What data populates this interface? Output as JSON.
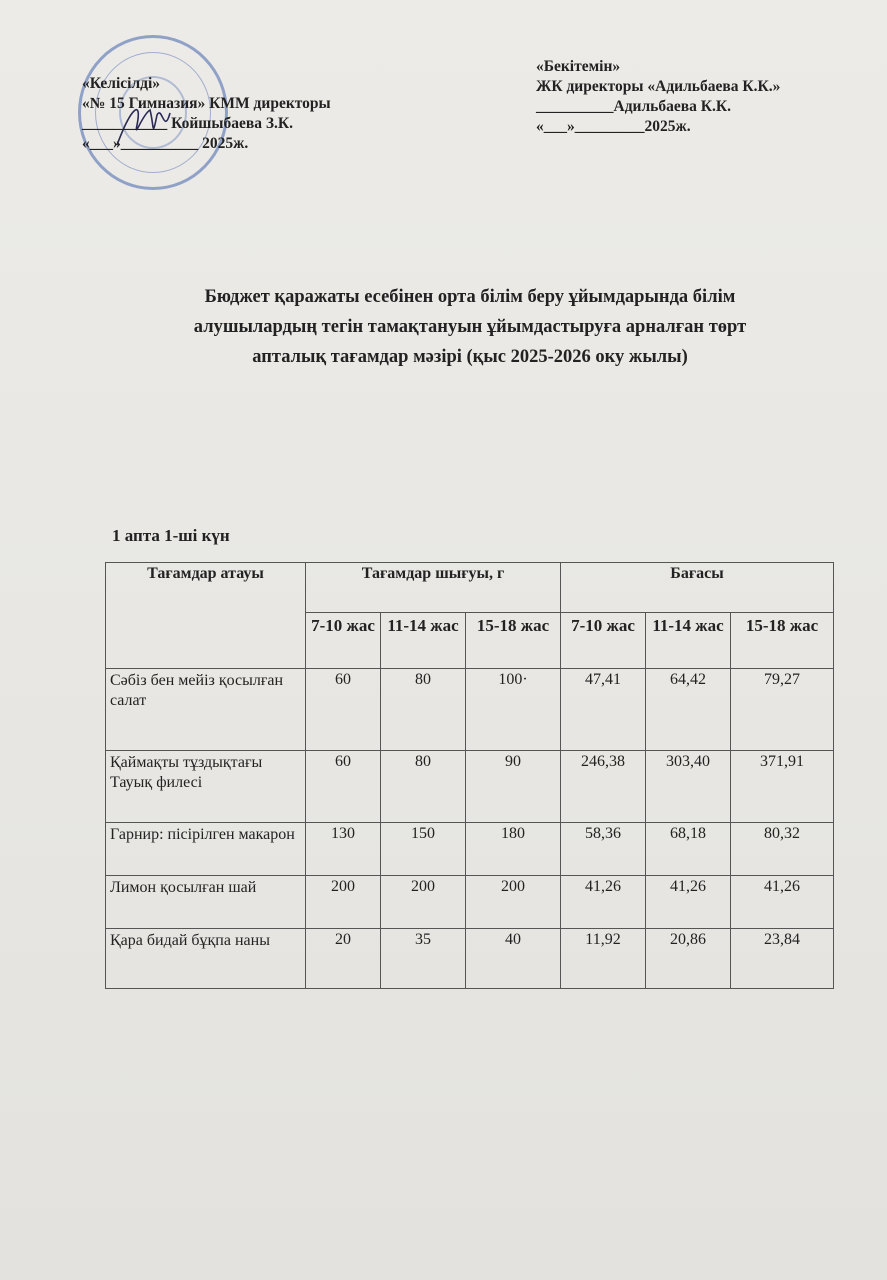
{
  "approval_left": {
    "line1": "«Келісілді»",
    "line2": "«№ 15 Гимназия» КММ директоры",
    "line3": "___________ Койшыбаева З.К.",
    "line4": "«___»__________ 2025ж."
  },
  "approval_right": {
    "line1": "«Бекітемін»",
    "line2": "ЖК директоры «Адильбаева К.К.»",
    "line3": "__________Адильбаева К.К.",
    "line4": "«___»_________2025ж."
  },
  "title": {
    "line1": "Бюджет қаражаты есебінен орта білім беру ұйымдарында білім",
    "line2": "алушылардың тегін тамақтануын ұйымдастыруға арналған төрт",
    "line3": "апталық тағамдар мәзірі (қыс 2025-2026 оку жылы)"
  },
  "day_label": "1 апта 1-ші күн",
  "table": {
    "header_name": "Тағамдар атауы",
    "header_output": "Тағамдар шығуы, г",
    "header_price": "Бағасы",
    "age_groups": [
      "7-10 жас",
      "11-14 жас",
      "15-18 жас",
      "7-10 жас",
      "11-14 жас",
      "15-18 жас"
    ],
    "rows": [
      {
        "name": "Сәбіз бен мейіз қосылған салат",
        "values": [
          "60",
          "80",
          "100·",
          "47,41",
          "64,42",
          "79,27"
        ]
      },
      {
        "name": "Қаймақты тұздықтағы Тауық филесі",
        "values": [
          "60",
          "80",
          "90",
          "246,38",
          "303,40",
          "371,91"
        ]
      },
      {
        "name": "Гарнир: пісірілген макарон",
        "values": [
          "130",
          "150",
          "180",
          "58,36",
          "68,18",
          "80,32"
        ]
      },
      {
        "name": "Лимон қосылған шай",
        "values": [
          "200",
          "200",
          "200",
          "41,26",
          "41,26",
          "41,26"
        ]
      },
      {
        "name": "Қара бидай бұқпа наны",
        "values": [
          "20",
          "35",
          "40",
          "11,92",
          "20,86",
          "23,84"
        ]
      }
    ]
  }
}
